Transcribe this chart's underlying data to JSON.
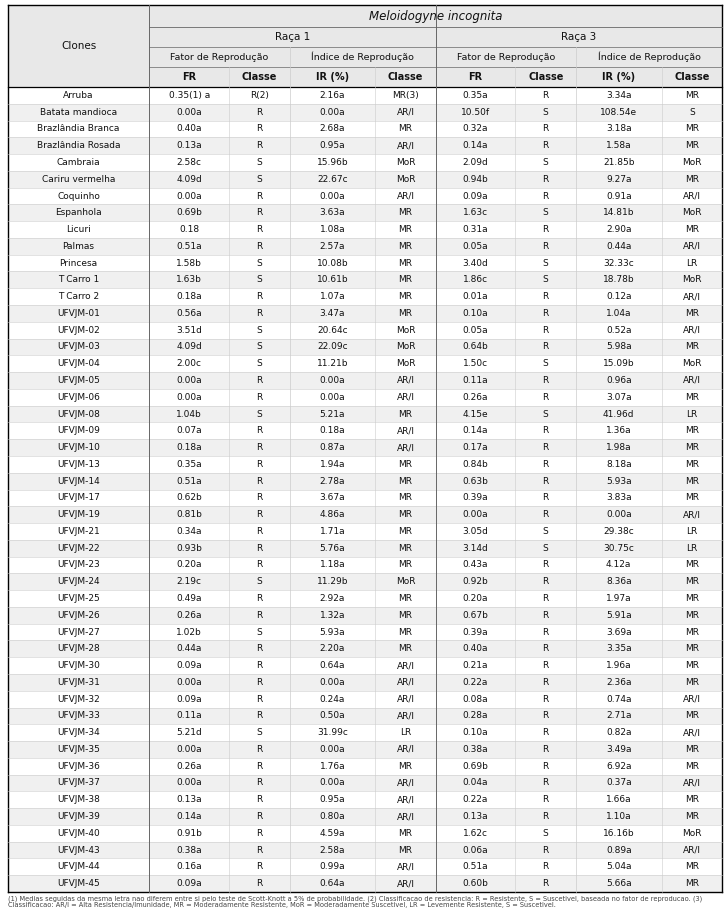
{
  "clones": [
    "Arruba",
    "Batata mandioca",
    "Brazlândia Branca",
    "Brazlândia Rosada",
    "Cambraia",
    "Cariru vermelha",
    "Coquinho",
    "Espanhola",
    "Licuri",
    "Palmas",
    "Princesa",
    "T Carro 1",
    "T Carro 2",
    "UFVJM-01",
    "UFVJM-02",
    "UFVJM-03",
    "UFVJM-04",
    "UFVJM-05",
    "UFVJM-06",
    "UFVJM-08",
    "UFVJM-09",
    "UFVJM-10",
    "UFVJM-13",
    "UFVJM-14",
    "UFVJM-17",
    "UFVJM-19",
    "UFVJM-21",
    "UFVJM-22",
    "UFVJM-23",
    "UFVJM-24",
    "UFVJM-25",
    "UFVJM-26",
    "UFVJM-27",
    "UFVJM-28",
    "UFVJM-30",
    "UFVJM-31",
    "UFVJM-32",
    "UFVJM-33",
    "UFVJM-34",
    "UFVJM-35",
    "UFVJM-36",
    "UFVJM-37",
    "UFVJM-38",
    "UFVJM-39",
    "UFVJM-40",
    "UFVJM-43",
    "UFVJM-44",
    "UFVJM-45"
  ],
  "rows": [
    [
      "0.35(1) a",
      "R(2)",
      "2.16a",
      "MR(3)",
      "0.35a",
      "R",
      "3.34a",
      "MR"
    ],
    [
      "0.00a",
      "R",
      "0.00a",
      "AR/I",
      "10.50f",
      "S",
      "108.54e",
      "S"
    ],
    [
      "0.40a",
      "R",
      "2.68a",
      "MR",
      "0.32a",
      "R",
      "3.18a",
      "MR"
    ],
    [
      "0.13a",
      "R",
      "0.95a",
      "AR/I",
      "0.14a",
      "R",
      "1.58a",
      "MR"
    ],
    [
      "2.58c",
      "S",
      "15.96b",
      "MoR",
      "2.09d",
      "S",
      "21.85b",
      "MoR"
    ],
    [
      "4.09d",
      "S",
      "22.67c",
      "MoR",
      "0.94b",
      "R",
      "9.27a",
      "MR"
    ],
    [
      "0.00a",
      "R",
      "0.00a",
      "AR/I",
      "0.09a",
      "R",
      "0.91a",
      "AR/I"
    ],
    [
      "0.69b",
      "R",
      "3.63a",
      "MR",
      "1.63c",
      "S",
      "14.81b",
      "MoR"
    ],
    [
      "0.18",
      "R",
      "1.08a",
      "MR",
      "0.31a",
      "R",
      "2.90a",
      "MR"
    ],
    [
      "0.51a",
      "R",
      "2.57a",
      "MR",
      "0.05a",
      "R",
      "0.44a",
      "AR/I"
    ],
    [
      "1.58b",
      "S",
      "10.08b",
      "MR",
      "3.40d",
      "S",
      "32.33c",
      "LR"
    ],
    [
      "1.63b",
      "S",
      "10.61b",
      "MR",
      "1.86c",
      "S",
      "18.78b",
      "MoR"
    ],
    [
      "0.18a",
      "R",
      "1.07a",
      "MR",
      "0.01a",
      "R",
      "0.12a",
      "AR/I"
    ],
    [
      "0.56a",
      "R",
      "3.47a",
      "MR",
      "0.10a",
      "R",
      "1.04a",
      "MR"
    ],
    [
      "3.51d",
      "S",
      "20.64c",
      "MoR",
      "0.05a",
      "R",
      "0.52a",
      "AR/I"
    ],
    [
      "4.09d",
      "S",
      "22.09c",
      "MoR",
      "0.64b",
      "R",
      "5.98a",
      "MR"
    ],
    [
      "2.00c",
      "S",
      "11.21b",
      "MoR",
      "1.50c",
      "S",
      "15.09b",
      "MoR"
    ],
    [
      "0.00a",
      "R",
      "0.00a",
      "AR/I",
      "0.11a",
      "R",
      "0.96a",
      "AR/I"
    ],
    [
      "0.00a",
      "R",
      "0.00a",
      "AR/I",
      "0.26a",
      "R",
      "3.07a",
      "MR"
    ],
    [
      "1.04b",
      "S",
      "5.21a",
      "MR",
      "4.15e",
      "S",
      "41.96d",
      "LR"
    ],
    [
      "0.07a",
      "R",
      "0.18a",
      "AR/I",
      "0.14a",
      "R",
      "1.36a",
      "MR"
    ],
    [
      "0.18a",
      "R",
      "0.87a",
      "AR/I",
      "0.17a",
      "R",
      "1.98a",
      "MR"
    ],
    [
      "0.35a",
      "R",
      "1.94a",
      "MR",
      "0.84b",
      "R",
      "8.18a",
      "MR"
    ],
    [
      "0.51a",
      "R",
      "2.78a",
      "MR",
      "0.63b",
      "R",
      "5.93a",
      "MR"
    ],
    [
      "0.62b",
      "R",
      "3.67a",
      "MR",
      "0.39a",
      "R",
      "3.83a",
      "MR"
    ],
    [
      "0.81b",
      "R",
      "4.86a",
      "MR",
      "0.00a",
      "R",
      "0.00a",
      "AR/I"
    ],
    [
      "0.34a",
      "R",
      "1.71a",
      "MR",
      "3.05d",
      "S",
      "29.38c",
      "LR"
    ],
    [
      "0.93b",
      "R",
      "5.76a",
      "MR",
      "3.14d",
      "S",
      "30.75c",
      "LR"
    ],
    [
      "0.20a",
      "R",
      "1.18a",
      "MR",
      "0.43a",
      "R",
      "4.12a",
      "MR"
    ],
    [
      "2.19c",
      "S",
      "11.29b",
      "MoR",
      "0.92b",
      "R",
      "8.36a",
      "MR"
    ],
    [
      "0.49a",
      "R",
      "2.92a",
      "MR",
      "0.20a",
      "R",
      "1.97a",
      "MR"
    ],
    [
      "0.26a",
      "R",
      "1.32a",
      "MR",
      "0.67b",
      "R",
      "5.91a",
      "MR"
    ],
    [
      "1.02b",
      "S",
      "5.93a",
      "MR",
      "0.39a",
      "R",
      "3.69a",
      "MR"
    ],
    [
      "0.44a",
      "R",
      "2.20a",
      "MR",
      "0.40a",
      "R",
      "3.35a",
      "MR"
    ],
    [
      "0.09a",
      "R",
      "0.64a",
      "AR/I",
      "0.21a",
      "R",
      "1.96a",
      "MR"
    ],
    [
      "0.00a",
      "R",
      "0.00a",
      "AR/I",
      "0.22a",
      "R",
      "2.36a",
      "MR"
    ],
    [
      "0.09a",
      "R",
      "0.24a",
      "AR/I",
      "0.08a",
      "R",
      "0.74a",
      "AR/I"
    ],
    [
      "0.11a",
      "R",
      "0.50a",
      "AR/I",
      "0.28a",
      "R",
      "2.71a",
      "MR"
    ],
    [
      "5.21d",
      "S",
      "31.99c",
      "LR",
      "0.10a",
      "R",
      "0.82a",
      "AR/I"
    ],
    [
      "0.00a",
      "R",
      "0.00a",
      "AR/I",
      "0.38a",
      "R",
      "3.49a",
      "MR"
    ],
    [
      "0.26a",
      "R",
      "1.76a",
      "MR",
      "0.69b",
      "R",
      "6.92a",
      "MR"
    ],
    [
      "0.00a",
      "R",
      "0.00a",
      "AR/I",
      "0.04a",
      "R",
      "0.37a",
      "AR/I"
    ],
    [
      "0.13a",
      "R",
      "0.95a",
      "AR/I",
      "0.22a",
      "R",
      "1.66a",
      "MR"
    ],
    [
      "0.14a",
      "R",
      "0.80a",
      "AR/I",
      "0.13a",
      "R",
      "1.10a",
      "MR"
    ],
    [
      "0.91b",
      "R",
      "4.59a",
      "MR",
      "1.62c",
      "S",
      "16.16b",
      "MoR"
    ],
    [
      "0.38a",
      "R",
      "2.58a",
      "MR",
      "0.06a",
      "R",
      "0.89a",
      "AR/I"
    ],
    [
      "0.16a",
      "R",
      "0.99a",
      "AR/I",
      "0.51a",
      "R",
      "5.04a",
      "MR"
    ],
    [
      "0.09a",
      "R",
      "0.64a",
      "AR/I",
      "0.60b",
      "R",
      "5.66a",
      "MR"
    ]
  ],
  "col_widths_rel": [
    1.45,
    0.82,
    0.62,
    0.88,
    0.62,
    0.82,
    0.62,
    0.88,
    0.62
  ],
  "header_bg": "#e8e8e8",
  "row_bg_even": "#ffffff",
  "row_bg_odd": "#f0f0f0",
  "border_heavy": "#000000",
  "border_medium": "#666666",
  "border_light": "#cccccc",
  "text_color": "#111111",
  "fs_title": 8.5,
  "fs_race": 7.5,
  "fs_subhdr": 6.8,
  "fs_collbl": 7.0,
  "fs_data": 6.5,
  "fs_clone": 6.5,
  "fs_footnote": 4.8,
  "footnote": "(1) Medias seguidas da mesma letra nao diferem entre si pelo teste de Scott-Knott a 5% de probabilidade. (2) Classificacao de resistencia: R = Resistente, S = Suscetivel, baseada no fator de reproducao. (3) Classificacao: AR/I = Alta Resistencia/Imunidade, MR = Moderadamente Resistente, MoR = Moderadamente Suscetivel, LR = Levemente Resistente, S = Suscetivel."
}
